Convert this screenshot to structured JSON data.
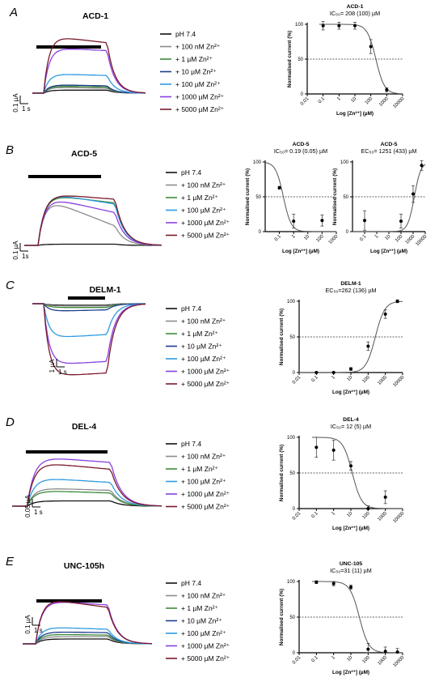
{
  "panels": [
    {
      "label": "A",
      "title": "ACD-1",
      "legend": [
        "pH 7.4",
        "+ 100 nM Zn²⁺",
        "+ 1 µM Zn²⁺",
        "+ 10 µM Zn²⁺",
        "+ 100 µM Zn²⁺",
        "+ 1000 µM Zn²⁺",
        "+ 5000 µM Zn²⁺"
      ],
      "scale_y": "0.1 µA",
      "scale_x": "1 s"
    },
    {
      "label": "B",
      "title": "ACD-5",
      "legend": [
        "pH 7.4",
        "+ 100 nM Zn²⁺",
        "+ 1 µM Zn²⁺",
        "+ 100 µM Zn²⁺",
        "+ 1000 µM Zn²⁺",
        "+ 5000 µM Zn²⁺"
      ],
      "scale_y": "0.1 µA",
      "scale_x": "1s"
    },
    {
      "label": "C",
      "title": "DELM-1",
      "legend": [
        "pH 7.4",
        "+ 100 nM Zn²⁺",
        "+ 1 µM Zn²⁺",
        "+ 10 µM Zn²⁺",
        "+ 100 µM Zn²⁺",
        "+ 1000 µM Zn²⁺",
        "+ 5000 µM Zn²⁺"
      ],
      "scale_y": "1 µA",
      "scale_x": "1 s"
    },
    {
      "label": "D",
      "title": "DEL-4",
      "legend": [
        "pH 7.4",
        "+ 100 nM Zn²⁺",
        "+ 1 µM Zn²⁺",
        "+ 100 µM Zn²⁺",
        "+ 1000 µM Zn²⁺",
        "+ 5000 µM Zn²⁺"
      ],
      "scale_y": "0.05 µA",
      "scale_x": "1 s"
    },
    {
      "label": "E",
      "title": "UNC-105h",
      "legend": [
        "pH 7.4",
        "+ 100 nM Zn²⁺",
        "+ 1 µM Zn²⁺",
        "+ 10 µM Zn²⁺",
        "+ 100 µM Zn²⁺",
        "+ 1000 µM Zn²⁺",
        "+ 5000 µM Zn²⁺"
      ],
      "scale_y": "0.1 µA",
      "scale_x": "1 s"
    }
  ],
  "colors": {
    "pH 7.4": "#111111",
    "+ 100 nM Zn²⁺": "#8c8c8c",
    "+ 1 µM Zn²⁺": "#3f8a3a",
    "+ 10 µM Zn²⁺": "#1d3c8c",
    "+ 100 µM Zn²⁺": "#2e9be0",
    "+ 1000 µM Zn²⁺": "#8a3fe0",
    "+ 5000 µM Zn²⁺": "#7a1a2a"
  },
  "chart_data": [
    {
      "type": "scatter",
      "panel": "A",
      "title": "ACD-1",
      "ic_label": "IC₅₀= 208 (100) µM",
      "xlabel": "Log [Zn²⁺] (µM)",
      "ylabel": "Normalised current (%)",
      "x_scale": "log",
      "xlim": [
        0.01,
        10000
      ],
      "ylim": [
        0,
        100
      ],
      "x_ticks": [
        "0.01",
        "0.1",
        "1",
        "10",
        "100",
        "1000",
        "10000"
      ],
      "y_ticks": [
        "0",
        "50",
        "100"
      ],
      "reference_line": 50,
      "fit": "inhibition",
      "fit_midpoint": 208,
      "points": [
        {
          "x": 0.1,
          "y": 98,
          "err": 6
        },
        {
          "x": 1,
          "y": 98,
          "err": 5
        },
        {
          "x": 10,
          "y": 98,
          "err": 5
        },
        {
          "x": 100,
          "y": 68,
          "err": 10
        },
        {
          "x": 1000,
          "y": 6,
          "err": 3
        }
      ]
    },
    {
      "type": "scatter",
      "panel": "B",
      "title": "ACD-5",
      "ic_label": "IC₅₀= 0.19 (0.05) µM",
      "xlabel": "Log [Zn²⁺] (µM)",
      "ylabel": "Normalised current (%)",
      "x_scale": "log",
      "xlim": [
        0.01,
        1000
      ],
      "ylim": [
        0,
        100
      ],
      "x_ticks": [
        "0.1",
        "1",
        "10",
        "100",
        "1000"
      ],
      "y_ticks": [
        "0",
        "50",
        "100"
      ],
      "reference_line": 50,
      "fit": "inhibition",
      "fit_midpoint": 0.19,
      "points": [
        {
          "x": 0.1,
          "y": 63,
          "err": 2
        },
        {
          "x": 1,
          "y": 15,
          "err": 10
        },
        {
          "x": 100,
          "y": 16,
          "err": 8
        }
      ]
    },
    {
      "type": "scatter",
      "panel": "B2",
      "title": "ACD-5",
      "ic_label": "EC₅₀= 1251 (433) µM",
      "xlabel": "Log [Zn²⁺] (µM)",
      "ylabel": "Normalised current (%)",
      "x_scale": "log",
      "xlim": [
        0.01,
        10000
      ],
      "ylim": [
        0,
        100
      ],
      "x_ticks": [
        "0.1",
        "1",
        "10",
        "100",
        "1000",
        "10000"
      ],
      "y_ticks": [
        "0",
        "50",
        "100"
      ],
      "reference_line": 50,
      "fit": "activation",
      "fit_midpoint": 1251,
      "points": [
        {
          "x": 0.1,
          "y": 16,
          "err": 14
        },
        {
          "x": 100,
          "y": 15,
          "err": 10
        },
        {
          "x": 1000,
          "y": 54,
          "err": 12
        },
        {
          "x": 5000,
          "y": 95,
          "err": 7
        }
      ]
    },
    {
      "type": "scatter",
      "panel": "C",
      "title": "DELM-1",
      "ic_label": "EC₅₀=262 (136) µM",
      "xlabel": "Log [Zn²⁺] (µM)",
      "ylabel": "Normalised current (%)",
      "x_scale": "log",
      "xlim": [
        0.01,
        10000
      ],
      "ylim": [
        0,
        100
      ],
      "x_ticks": [
        "0.01",
        "0.1",
        "1",
        "10",
        "100",
        "1000",
        "10000"
      ],
      "y_ticks": [
        "0",
        "50",
        "100"
      ],
      "reference_line": 50,
      "fit": "activation",
      "fit_midpoint": 262,
      "points": [
        {
          "x": 0.1,
          "y": 0,
          "err": 1
        },
        {
          "x": 1,
          "y": 0,
          "err": 1
        },
        {
          "x": 10,
          "y": 5,
          "err": 2
        },
        {
          "x": 100,
          "y": 37,
          "err": 6
        },
        {
          "x": 1000,
          "y": 82,
          "err": 6
        },
        {
          "x": 5000,
          "y": 100,
          "err": 2
        }
      ]
    },
    {
      "type": "scatter",
      "panel": "D",
      "title": "DEL-4",
      "ic_label": "IC₅₀= 12 (5) µM",
      "xlabel": "Log [Zn²⁺] (µM)",
      "ylabel": "Normalised current (%)",
      "x_scale": "log",
      "xlim": [
        0.01,
        10000
      ],
      "ylim": [
        0,
        100
      ],
      "x_ticks": [
        "0.01",
        "0.1",
        "1",
        "10",
        "100",
        "1000",
        "10000"
      ],
      "y_ticks": [
        "0",
        "50",
        "100"
      ],
      "reference_line": 50,
      "fit": "inhibition",
      "fit_midpoint": 12,
      "points": [
        {
          "x": 0.1,
          "y": 86,
          "err": 14
        },
        {
          "x": 1,
          "y": 82,
          "err": 14
        },
        {
          "x": 10,
          "y": 60,
          "err": 6
        },
        {
          "x": 100,
          "y": 0,
          "err": 4
        },
        {
          "x": 1000,
          "y": 16,
          "err": 9
        }
      ]
    },
    {
      "type": "scatter",
      "panel": "E",
      "title": "UNC-105",
      "ic_label": "IC₅₀=31 (11) µM",
      "xlabel": "Log [Zn²⁺] (µM)",
      "ylabel": "Normalised current (%)",
      "x_scale": "log",
      "xlim": [
        0.01,
        10000
      ],
      "ylim": [
        0,
        100
      ],
      "x_ticks": [
        "0.01",
        "0.1",
        "1",
        "10",
        "100",
        "1000",
        "10000"
      ],
      "y_ticks": [
        "0",
        "50",
        "100"
      ],
      "reference_line": 50,
      "fit": "inhibition",
      "fit_midpoint": 31,
      "points": [
        {
          "x": 0.1,
          "y": 99,
          "err": 2
        },
        {
          "x": 1,
          "y": 97,
          "err": 3
        },
        {
          "x": 10,
          "y": 92,
          "err": 3
        },
        {
          "x": 100,
          "y": 5,
          "err": 8
        },
        {
          "x": 1000,
          "y": 2,
          "err": 6
        },
        {
          "x": 5000,
          "y": 1,
          "err": 5
        }
      ]
    }
  ]
}
